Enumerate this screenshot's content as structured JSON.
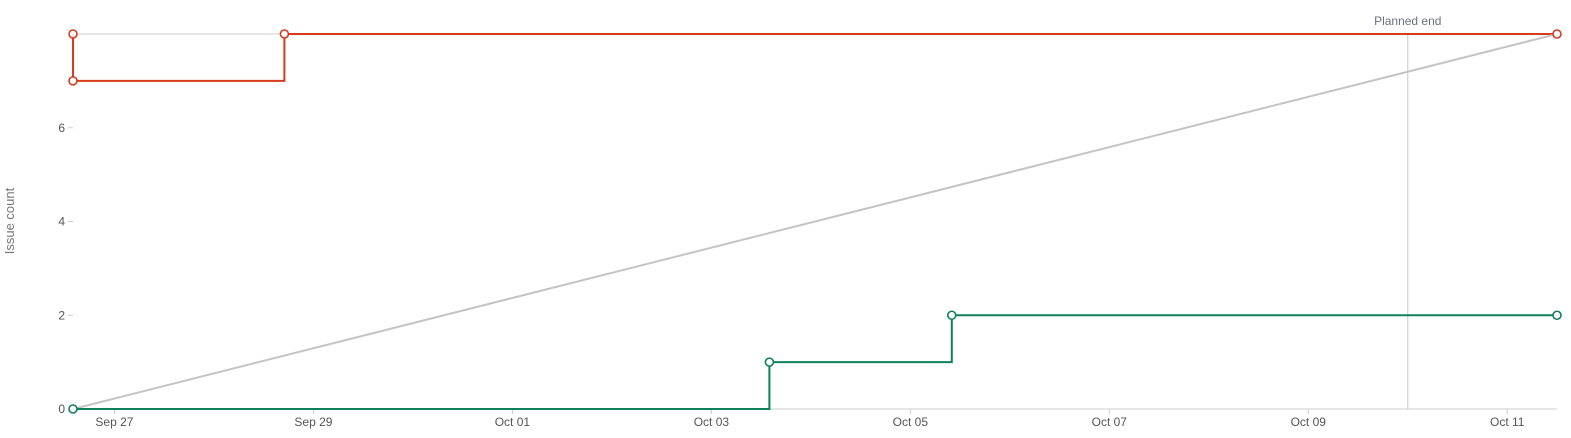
{
  "chart_data": {
    "type": "line",
    "title": "",
    "xlabel": "",
    "ylabel": "Issue count",
    "x_ticks": [
      "Sep 27",
      "Sep 29",
      "Oct 01",
      "Oct 03",
      "Oct 05",
      "Oct 07",
      "Oct 09",
      "Oct 11"
    ],
    "y_ticks": [
      0,
      2,
      4,
      6
    ],
    "xlim": [
      "2023-09-26T14:00",
      "2023-10-11T12:00"
    ],
    "ylim": [
      0,
      8
    ],
    "annotations": [
      {
        "label": "Planned end",
        "x": "2023-10-10T00:00"
      }
    ],
    "series": [
      {
        "step": true,
        "color": "#d63b1c",
        "points": [
          {
            "x": "2023-09-26T14:00",
            "y": 8,
            "marker": true
          },
          {
            "x": "2023-09-26T14:00",
            "y": 7,
            "marker": true
          },
          {
            "x": "2023-09-28T17:00",
            "y": 7,
            "marker": false
          },
          {
            "x": "2023-09-28T17:00",
            "y": 8,
            "marker": true
          },
          {
            "x": "2023-10-11T12:00",
            "y": 8,
            "marker": true
          }
        ]
      },
      {
        "step": false,
        "color": "#c4c4c4",
        "points": [
          {
            "x": "2023-09-26T14:00",
            "y": 0,
            "marker": false
          },
          {
            "x": "2023-10-11T12:00",
            "y": 8,
            "marker": false
          }
        ]
      },
      {
        "step": true,
        "color": "#10805a",
        "points": [
          {
            "x": "2023-09-26T14:00",
            "y": 0,
            "marker": true
          },
          {
            "x": "2023-10-03T14:00",
            "y": 0,
            "marker": false
          },
          {
            "x": "2023-10-03T14:00",
            "y": 1,
            "marker": true
          },
          {
            "x": "2023-10-05T10:00",
            "y": 1,
            "marker": false
          },
          {
            "x": "2023-10-05T10:00",
            "y": 2,
            "marker": true
          },
          {
            "x": "2023-10-11T12:00",
            "y": 2,
            "marker": true
          }
        ]
      }
    ],
    "grid": false
  }
}
